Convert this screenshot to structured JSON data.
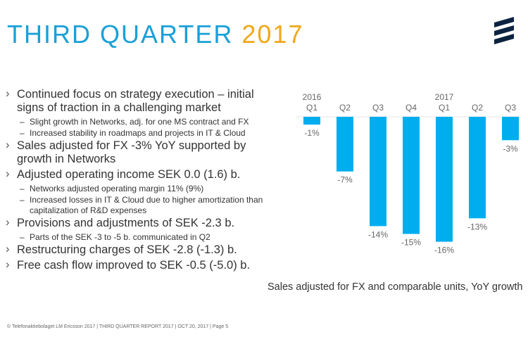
{
  "title": {
    "main": "THIRD QUARTER",
    "year": "2017"
  },
  "bullets": [
    {
      "text": "Continued focus on strategy execution – initial signs of traction in a challenging market",
      "sub": [
        "Slight growth in Networks, adj. for one MS contract and FX",
        "Increased stability in roadmaps and projects in IT & Cloud"
      ]
    },
    {
      "text": "Sales adjusted for FX -3% YoY supported by growth in Networks",
      "sub": []
    },
    {
      "text": "Adjusted operating income SEK 0.0 (1.6) b.",
      "sub": [
        "Networks adjusted operating margin 11% (9%)",
        "Increased losses in IT & Cloud due to higher amortization than capitalization of R&D expenses"
      ]
    },
    {
      "text": "Provisions and adjustments of SEK -2.3 b.",
      "sub": [
        "Parts of the SEK -3 to -5 b. communicated in Q2"
      ]
    },
    {
      "text": "Restructuring charges of SEK -2.8 (-1.3) b.",
      "sub": []
    },
    {
      "text": "Free cash flow improved to SEK -0.5 (-5.0) b.",
      "sub": []
    }
  ],
  "chart_data": {
    "type": "bar",
    "categories": [
      "Q1",
      "Q2",
      "Q3",
      "Q4",
      "Q1",
      "Q2",
      "Q3"
    ],
    "year_labels": [
      "2016",
      "",
      "",
      "",
      "2017",
      "",
      ""
    ],
    "values": [
      -1,
      -7,
      -14,
      -15,
      -16,
      -13,
      -3
    ],
    "data_labels": [
      "-1%",
      "-7%",
      "-14%",
      "-15%",
      "-16%",
      "-13%",
      "-3%"
    ],
    "ylim": [
      -16,
      0
    ],
    "grid": false,
    "bar_color": "#00aeef",
    "caption": "Sales adjusted for FX and comparable units, YoY growth"
  },
  "footer": "© Telefonaktiebolaget LM Ericsson 2017 | THIRD QUARTER REPORT 2017 | OCT 20, 2017 | Page 5",
  "logo": "ERICSSON"
}
